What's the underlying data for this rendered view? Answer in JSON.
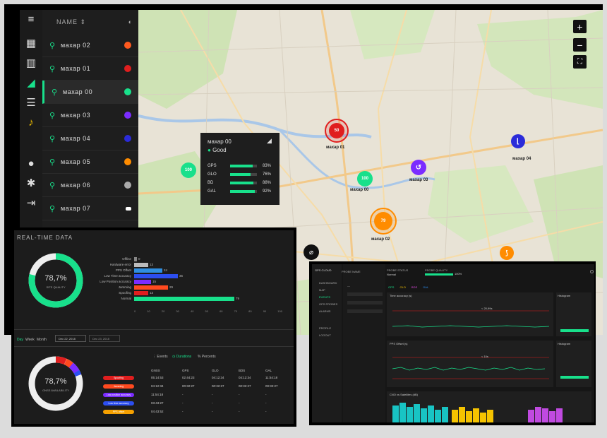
{
  "sidebar": {
    "header_name": "NAME",
    "items": [
      {
        "label": "махар 02",
        "dot": "#ff5a1f"
      },
      {
        "label": "махар 01",
        "dot": "#e01e1e"
      },
      {
        "label": "махар 00",
        "dot": "#18e08b"
      },
      {
        "label": "махар 03",
        "dot": "#7b2cff"
      },
      {
        "label": "махар 04",
        "dot": "#2b2bd9"
      },
      {
        "label": "махар 05",
        "dot": "#ff8c00"
      },
      {
        "label": "махар 06",
        "dot": "#aaaaaa"
      },
      {
        "label": "махар 07",
        "dot": "#ffffff"
      }
    ]
  },
  "map": {
    "markers": [
      {
        "value": "50",
        "label": "махар 01"
      },
      {
        "value": "100",
        "label": "махар 00"
      },
      {
        "value": "100",
        "label": ""
      },
      {
        "value": "79",
        "label": "махар 02"
      },
      {
        "value": "",
        "label": "махар 03"
      },
      {
        "value": "",
        "label": "махар 04"
      },
      {
        "value": "",
        "label": ""
      }
    ]
  },
  "tooltip": {
    "title": "махар 00",
    "status": "Good",
    "rows": [
      {
        "label": "GPS",
        "pct": "83%",
        "v": 0.83
      },
      {
        "label": "GLO",
        "pct": "76%",
        "v": 0.76
      },
      {
        "label": "BD",
        "pct": "88%",
        "v": 0.88
      },
      {
        "label": "GAL",
        "pct": "92%",
        "v": 0.92
      }
    ]
  },
  "realtime": {
    "title": "REAL-TIME DATA",
    "donut1_value": "78,7%",
    "donut1_label": "SITE QUALITY",
    "bars": [
      {
        "label": "Offline",
        "value": "0",
        "v": 0.02,
        "color": "#888"
      },
      {
        "label": "Hardware error",
        "value": "13",
        "v": 0.1,
        "color": "#bbb"
      },
      {
        "label": "PPS Offset",
        "value": "24",
        "v": 0.19,
        "color": "#2f8fe0"
      },
      {
        "label": "Low Time accuracy",
        "value": "36",
        "v": 0.28,
        "color": "#2c4ef0"
      },
      {
        "label": "Low Position accuracy",
        "value": "15",
        "v": 0.12,
        "color": "#7b2cff"
      },
      {
        "label": "Jamming",
        "value": "29",
        "v": 0.23,
        "color": "#ff4a1f"
      },
      {
        "label": "Spoofing",
        "value": "13",
        "v": 0.1,
        "color": "#e01e1e"
      },
      {
        "label": "Normal",
        "value": "79",
        "v": 0.62,
        "color": "#18e08b"
      }
    ],
    "axis": [
      "0",
      "10",
      "20",
      "30",
      "40",
      "50",
      "60",
      "70",
      "80",
      "90",
      "100"
    ],
    "tabs": [
      "Day",
      "Week",
      "Month"
    ],
    "date_from": "Dec 22, 2018",
    "date_to": "Dec 23, 2018",
    "donut2_value": "78,7%",
    "donut2_label": "GNSS AVAILABILITY",
    "mode_tabs": [
      "Events",
      "Durations",
      "Percents"
    ],
    "cols": [
      "GNSS",
      "GPS",
      "GLO",
      "BDS",
      "GAL"
    ],
    "rows": [
      {
        "label": "Spoofing",
        "color": "#e01e1e",
        "vals": [
          "05:14:53",
          "02:44:23",
          "04:12:34",
          "04:12:34",
          "11:54:18"
        ]
      },
      {
        "label": "Jamming",
        "color": "#ff4a1f",
        "vals": [
          "04:12:34",
          "00:32:27",
          "00:32:27",
          "00:32:27",
          "00:32:27"
        ]
      },
      {
        "label": "Low position accuracy",
        "color": "#7b2cff",
        "vals": [
          "11:54:18",
          "-",
          "-",
          "-",
          "-"
        ]
      },
      {
        "label": "Low time accuracy",
        "color": "#2c4ef0",
        "vals": [
          "03:43:27",
          "-",
          "-",
          "-",
          "-"
        ]
      },
      {
        "label": "PPS offset",
        "color": "#f5a000",
        "vals": [
          "04:43:52",
          "-",
          "-",
          "-",
          "-"
        ]
      }
    ]
  },
  "panel3": {
    "title": "GPS CLOUD",
    "nav": [
      "DASHBOARD",
      "MAP",
      "EVENTS",
      "GPS PROBES",
      "ALARMS",
      "PROFILE",
      "LOGOUT"
    ],
    "col1": "PROBE NAME",
    "col2": "PROBE STATUS",
    "col3": "PROBE QUALITY",
    "status": "Normal",
    "quality": "100%",
    "chart1": "Time accuracy (s)",
    "chart2": "PPS Offset (s)",
    "chart3": "CNO vs Satellites (dB)",
    "histogram": "Histogram",
    "legend": [
      "GPS",
      "GLO",
      "BDS",
      "GAL"
    ],
    "tip1": "< 20,99s",
    "tip2": "< 10s"
  }
}
